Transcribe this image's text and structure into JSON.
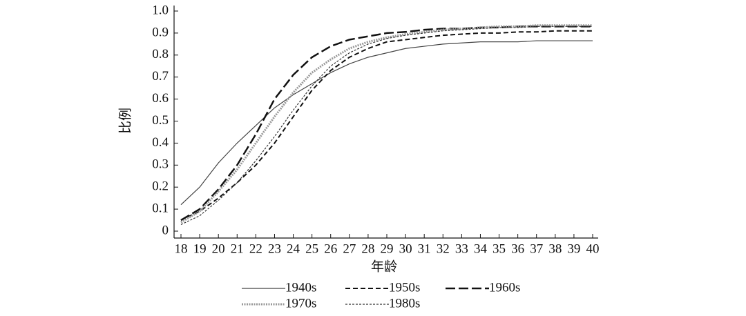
{
  "chart_data": {
    "type": "line",
    "xlabel": "年龄",
    "ylabel": "比例",
    "x": [
      18,
      19,
      20,
      21,
      22,
      23,
      24,
      25,
      26,
      27,
      28,
      29,
      30,
      31,
      32,
      33,
      34,
      35,
      36,
      37,
      38,
      39,
      40
    ],
    "xlim": [
      18,
      40
    ],
    "xticks": [
      18,
      19,
      20,
      21,
      22,
      23,
      24,
      25,
      26,
      27,
      28,
      29,
      30,
      31,
      32,
      33,
      34,
      35,
      36,
      37,
      38,
      39,
      40
    ],
    "ylim": [
      0,
      1
    ],
    "yticks": [
      0,
      0.1,
      0.2,
      0.3,
      0.4,
      0.5,
      0.6,
      0.7,
      0.8,
      0.9,
      {
        "value": 1,
        "label": "1.0"
      }
    ],
    "legend": "bottom",
    "series": [
      {
        "name": "1940s",
        "color": "#444444",
        "dash": "none",
        "width": 1.2,
        "values": [
          0.12,
          0.2,
          0.31,
          0.4,
          0.48,
          0.56,
          0.62,
          0.67,
          0.72,
          0.76,
          0.79,
          0.81,
          0.83,
          0.84,
          0.85,
          0.855,
          0.86,
          0.86,
          0.86,
          0.865,
          0.865,
          0.865,
          0.865
        ]
      },
      {
        "name": "1950s",
        "color": "#111111",
        "dash": "7,4",
        "width": 2,
        "values": [
          0.05,
          0.09,
          0.15,
          0.22,
          0.3,
          0.4,
          0.52,
          0.64,
          0.73,
          0.79,
          0.83,
          0.86,
          0.87,
          0.88,
          0.89,
          0.895,
          0.9,
          0.9,
          0.905,
          0.905,
          0.91,
          0.91,
          0.91
        ]
      },
      {
        "name": "1960s",
        "color": "#111111",
        "dash": "14,5",
        "width": 2.5,
        "values": [
          0.05,
          0.1,
          0.19,
          0.3,
          0.44,
          0.6,
          0.71,
          0.79,
          0.84,
          0.87,
          0.885,
          0.9,
          0.905,
          0.915,
          0.92,
          0.92,
          0.925,
          0.925,
          0.93,
          0.93,
          0.93,
          0.93,
          0.93
        ]
      },
      {
        "name": "1970s",
        "color": "#999999",
        "dash": "2,1.5",
        "width": 3,
        "values": [
          0.04,
          0.09,
          0.18,
          0.28,
          0.4,
          0.52,
          0.63,
          0.72,
          0.78,
          0.83,
          0.86,
          0.88,
          0.895,
          0.905,
          0.915,
          0.92,
          0.925,
          0.93,
          0.93,
          0.935,
          0.935,
          0.935,
          0.935
        ]
      },
      {
        "name": "1980s",
        "color": "#333333",
        "dash": "3,2",
        "width": 1.2,
        "values": [
          0.03,
          0.07,
          0.14,
          0.22,
          0.32,
          0.43,
          0.55,
          0.66,
          0.75,
          0.81,
          0.85,
          0.875,
          0.89,
          0.9,
          0.91,
          0.915,
          0.92,
          0.925,
          0.925,
          0.93,
          0.93,
          0.93,
          0.93
        ]
      }
    ]
  }
}
